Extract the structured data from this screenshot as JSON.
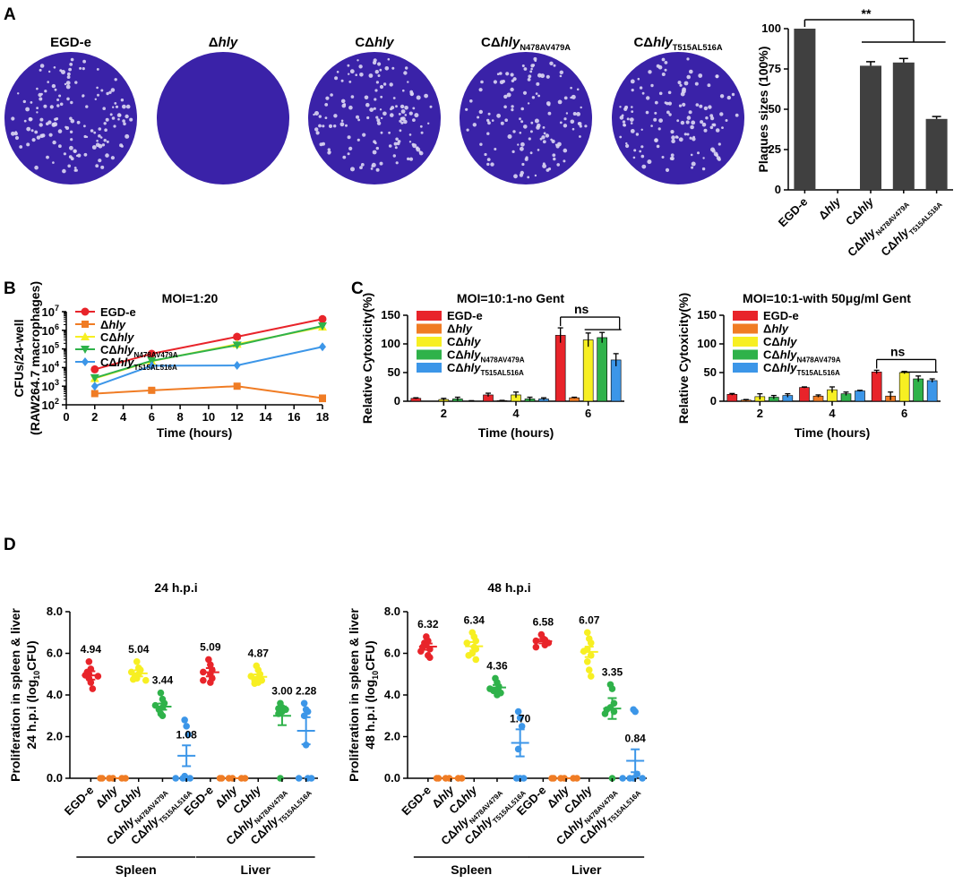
{
  "panel_labels": [
    "A",
    "B",
    "C",
    "D"
  ],
  "strains": [
    {
      "main": "EGD-e",
      "sub": ""
    },
    {
      "main": "Δhly",
      "sub": ""
    },
    {
      "main": "CΔhly",
      "sub": ""
    },
    {
      "main": "CΔhly",
      "sub": "N478AV479A"
    },
    {
      "main": "CΔhly",
      "sub": "T515AL516A"
    }
  ],
  "colors": {
    "EGD-e": "#e8242a",
    "Δhly": "#f07c24",
    "CΔhly": "#f7ef22",
    "CΔhlyN478AV479A": "#2fb24a",
    "CΔhlyT515AL516A": "#3c96e8",
    "bar_gray": "#404040",
    "plaque_bg": "#3a22a8"
  },
  "plaques": {
    "names": [
      "EGD-e",
      "Δhly",
      "CΔhly",
      "CΔhlyN478AV479A",
      "CΔhlyT515AL516A"
    ],
    "spot_counts": [
      150,
      0,
      140,
      130,
      130
    ]
  },
  "chart_data": [
    {
      "id": "A",
      "type": "bar",
      "categories": [
        "EGD-e",
        "Δhly",
        "CΔhly",
        "CΔhlyN478AV479A",
        "CΔhlyT515AL516A"
      ],
      "values": [
        100,
        0,
        77,
        79,
        44
      ],
      "errors": [
        0,
        0,
        2.5,
        2.5,
        1.5
      ],
      "ylabel": "Plaques sizes (100%)",
      "ylim": [
        0,
        100
      ],
      "yticks": [
        0,
        25,
        50,
        75,
        100
      ],
      "significance": "**"
    },
    {
      "id": "B",
      "type": "line",
      "title": "MOI=1:20",
      "xlabel": "Time (hours)",
      "ylabel": "CFUs/24-well",
      "ylabel2": "(RAW264.7 macrophages)",
      "x": [
        2,
        6,
        12,
        18
      ],
      "xlim": [
        0,
        18
      ],
      "xticks": [
        0,
        2,
        4,
        6,
        8,
        10,
        12,
        14,
        16,
        18
      ],
      "yscale": "log",
      "ylim": [
        100,
        10000000
      ],
      "ytick_exponents": [
        "2",
        "3",
        "4",
        "5",
        "6",
        "7"
      ],
      "series": [
        {
          "name": "EGD-e",
          "values": [
            8000,
            55000,
            450000,
            4000000
          ],
          "errors": [
            0,
            0,
            100000,
            0
          ]
        },
        {
          "name": "Δhly",
          "values": [
            400,
            600,
            1000,
            230
          ],
          "errors": [
            0,
            150,
            0,
            80
          ]
        },
        {
          "name": "CΔhly",
          "values": [
            2600,
            22000,
            180000,
            1500000
          ],
          "errors": [
            600,
            0,
            40000,
            0
          ]
        },
        {
          "name": "CΔhlyN478AV479A",
          "values": [
            2800,
            23000,
            160000,
            1700000
          ],
          "errors": [
            0,
            0,
            0,
            0
          ]
        },
        {
          "name": "CΔhlyT515AL516A",
          "values": [
            1000,
            12500,
            13000,
            130000
          ],
          "errors": [
            0,
            0,
            0,
            0
          ]
        }
      ]
    },
    {
      "id": "C1",
      "type": "bar",
      "title": "MOI=10:1-no Gent",
      "xlabel": "Time (hours)",
      "ylabel": "Relative Cytoxicity(%)",
      "categories": [
        "2",
        "4",
        "6"
      ],
      "ylim": [
        0,
        150
      ],
      "yticks": [
        0,
        50,
        100,
        150
      ],
      "series": [
        {
          "name": "EGD-e",
          "values": [
            5,
            11,
            115
          ],
          "errors": [
            1,
            3,
            13
          ]
        },
        {
          "name": "Δhly",
          "values": [
            0,
            1,
            6
          ],
          "errors": [
            0,
            0.5,
            1
          ]
        },
        {
          "name": "CΔhly",
          "values": [
            3,
            11,
            107
          ],
          "errors": [
            2,
            5,
            12
          ]
        },
        {
          "name": "CΔhlyN478AV479A",
          "values": [
            4,
            4,
            111
          ],
          "errors": [
            3,
            3,
            9
          ]
        },
        {
          "name": "CΔhlyT515AL516A",
          "values": [
            0,
            4,
            72
          ],
          "errors": [
            1,
            2,
            11
          ]
        }
      ],
      "significance": "ns"
    },
    {
      "id": "C2",
      "type": "bar",
      "title": "MOI=10:1-with 50μg/ml Gent",
      "xlabel": "Time (hours)",
      "ylabel": "Relative Cytoxicity(%)",
      "categories": [
        "2",
        "4",
        "6"
      ],
      "ylim": [
        0,
        150
      ],
      "yticks": [
        0,
        50,
        100,
        150
      ],
      "series": [
        {
          "name": "EGD-e",
          "values": [
            12,
            24,
            51
          ],
          "errors": [
            1.5,
            1,
            3
          ]
        },
        {
          "name": "Δhly",
          "values": [
            2,
            9,
            9
          ],
          "errors": [
            1,
            2,
            7
          ]
        },
        {
          "name": "CΔhly",
          "values": [
            8,
            20,
            50
          ],
          "errors": [
            5,
            5,
            2
          ]
        },
        {
          "name": "CΔhlyN478AV479A",
          "values": [
            7,
            13,
            39
          ],
          "errors": [
            3,
            3,
            5
          ]
        },
        {
          "name": "CΔhlyT515AL516A",
          "values": [
            10,
            18,
            36
          ],
          "errors": [
            3,
            1,
            3
          ]
        }
      ],
      "significance": "ns"
    },
    {
      "id": "D1",
      "type": "scatter",
      "title": "24 h.p.i",
      "ylabel": "Proliferation in spleen & liver",
      "ylabel2": "24 h.p.i (log10CFU)",
      "ylim": [
        0,
        8
      ],
      "yticks": [
        "0.0",
        "2.0",
        "4.0",
        "6.0",
        "8.0"
      ],
      "groups": [
        {
          "organ": "Spleen",
          "strain": "EGD-e",
          "mean": 4.94,
          "sem": 0.2,
          "label": "4.94",
          "points": [
            5.6,
            5.25,
            5.1,
            5.0,
            4.95,
            4.9,
            4.8,
            4.6,
            4.3
          ]
        },
        {
          "organ": "Spleen",
          "strain": "Δhly",
          "mean": 0,
          "sem": 0,
          "label": "",
          "points": [
            0,
            0,
            0,
            0,
            0,
            0
          ]
        },
        {
          "organ": "Spleen",
          "strain": "CΔhly",
          "mean": 5.04,
          "sem": 0.15,
          "label": "5.04",
          "points": [
            5.6,
            5.3,
            5.2,
            5.1,
            5.0,
            4.9,
            4.8,
            4.75,
            4.7
          ]
        },
        {
          "organ": "Spleen",
          "strain": "CΔhlyN478AV479A",
          "mean": 3.44,
          "sem": 0.15,
          "label": "3.44",
          "points": [
            4.1,
            3.8,
            3.6,
            3.5,
            3.4,
            3.3,
            3.1,
            3.0
          ]
        },
        {
          "organ": "Spleen",
          "strain": "CΔhlyT515AL516A",
          "mean": 1.08,
          "sem": 0.5,
          "label": "1.08",
          "points": [
            2.8,
            2.5,
            2.1,
            0.1,
            0,
            0,
            0,
            0
          ]
        },
        {
          "organ": "Liver",
          "strain": "EGD-e",
          "mean": 5.09,
          "sem": 0.2,
          "label": "5.09",
          "points": [
            5.7,
            5.45,
            5.2,
            5.1,
            5.0,
            4.8,
            4.7,
            4.6
          ]
        },
        {
          "organ": "Liver",
          "strain": "Δhly",
          "mean": 0,
          "sem": 0,
          "label": "",
          "points": [
            0,
            0,
            0,
            0,
            0,
            0
          ]
        },
        {
          "organ": "Liver",
          "strain": "CΔhly",
          "mean": 4.87,
          "sem": 0.12,
          "label": "4.87",
          "points": [
            5.4,
            5.2,
            5.0,
            4.9,
            4.8,
            4.7,
            4.7,
            4.6,
            4.55
          ]
        },
        {
          "organ": "Liver",
          "strain": "CΔhlyN478AV479A",
          "mean": 3.0,
          "sem": 0.45,
          "label": "3.00",
          "points": [
            3.6,
            3.4,
            3.35,
            3.3,
            3.2,
            3.1,
            0
          ]
        },
        {
          "organ": "Liver",
          "strain": "CΔhlyT515AL516A",
          "mean": 2.28,
          "sem": 0.65,
          "label": "2.28",
          "points": [
            3.6,
            3.3,
            3.2,
            3.0,
            1.6,
            0,
            0,
            0
          ]
        }
      ]
    },
    {
      "id": "D2",
      "type": "scatter",
      "title": "48 h.p.i",
      "ylabel": "Proliferation in spleen & liver",
      "ylabel2": "48 h.p.i (log10CFU)",
      "ylim": [
        0,
        8
      ],
      "yticks": [
        "0.0",
        "2.0",
        "4.0",
        "6.0",
        "8.0"
      ],
      "groups": [
        {
          "organ": "Spleen",
          "strain": "EGD-e",
          "mean": 6.32,
          "sem": 0.15,
          "label": "6.32",
          "points": [
            6.8,
            6.6,
            6.5,
            6.4,
            6.3,
            6.2,
            6.1,
            5.9,
            5.8
          ]
        },
        {
          "organ": "Spleen",
          "strain": "Δhly",
          "mean": 0,
          "sem": 0,
          "label": "",
          "points": [
            0,
            0,
            0,
            0,
            0,
            0
          ]
        },
        {
          "organ": "Spleen",
          "strain": "CΔhly",
          "mean": 6.34,
          "sem": 0.2,
          "label": "6.34",
          "points": [
            7.0,
            6.8,
            6.6,
            6.5,
            6.3,
            6.2,
            6.0,
            5.9,
            5.7
          ]
        },
        {
          "organ": "Spleen",
          "strain": "CΔhlyN478AV479A",
          "mean": 4.36,
          "sem": 0.12,
          "label": "4.36",
          "points": [
            4.8,
            4.6,
            4.4,
            4.3,
            4.25,
            4.2,
            4.1,
            4.0
          ]
        },
        {
          "organ": "Spleen",
          "strain": "CΔhlyT515AL516A",
          "mean": 1.7,
          "sem": 0.65,
          "label": "1.70",
          "points": [
            3.2,
            2.9,
            2.5,
            1.4,
            0,
            0,
            0
          ]
        },
        {
          "organ": "Liver",
          "strain": "EGD-e",
          "mean": 6.58,
          "sem": 0.1,
          "label": "6.58",
          "points": [
            6.9,
            6.7,
            6.65,
            6.6,
            6.5,
            6.4,
            6.3
          ]
        },
        {
          "organ": "Liver",
          "strain": "Δhly",
          "mean": 0,
          "sem": 0,
          "label": "",
          "points": [
            0,
            0,
            0,
            0,
            0,
            0
          ]
        },
        {
          "organ": "Liver",
          "strain": "CΔhly",
          "mean": 6.07,
          "sem": 0.25,
          "label": "6.07",
          "points": [
            7.0,
            6.7,
            6.5,
            6.2,
            6.1,
            5.9,
            5.6,
            5.2,
            4.9
          ]
        },
        {
          "organ": "Liver",
          "strain": "CΔhlyN478AV479A",
          "mean": 3.35,
          "sem": 0.5,
          "label": "3.35",
          "points": [
            4.5,
            4.3,
            3.6,
            3.4,
            3.3,
            3.2,
            3.1,
            0
          ]
        },
        {
          "organ": "Liver",
          "strain": "CΔhlyT515AL516A",
          "mean": 0.84,
          "sem": 0.55,
          "label": "0.84",
          "points": [
            3.3,
            3.2,
            0.2,
            0,
            0,
            0,
            0
          ]
        }
      ]
    }
  ]
}
